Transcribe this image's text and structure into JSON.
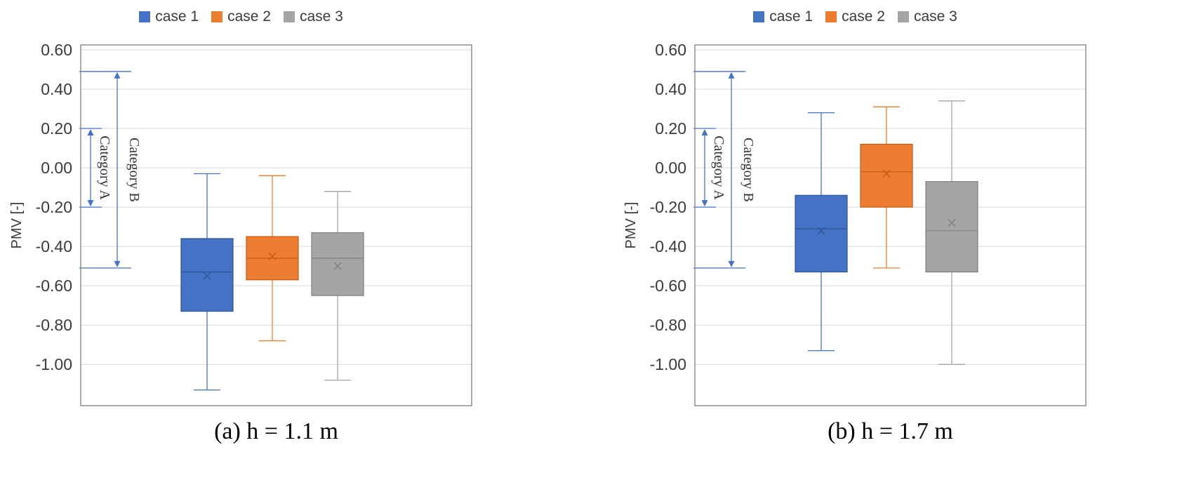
{
  "page": {
    "background": "#ffffff",
    "grid_color": "#d9d9d9",
    "border_color": "#7f7f7f",
    "axis_text_color": "#3b3b3b"
  },
  "chart_data": [
    {
      "type": "box",
      "caption": "(a) h = 1.1 m",
      "ylabel": "PMV [-]",
      "ylim": [
        -1.21,
        0.625
      ],
      "grid": true,
      "legend_position": "top",
      "annotation_color": "#4472c4",
      "yticks": [
        {
          "v": 0.6,
          "label": "0.60"
        },
        {
          "v": 0.4,
          "label": "0.40"
        },
        {
          "v": 0.2,
          "label": "0.20"
        },
        {
          "v": 0.0,
          "label": "0.00"
        },
        {
          "v": -0.2,
          "label": "-0.20"
        },
        {
          "v": -0.4,
          "label": "-0.40"
        },
        {
          "v": -0.6,
          "label": "-0.60"
        },
        {
          "v": -0.8,
          "label": "-0.80"
        },
        {
          "v": -1.0,
          "label": "-1.00"
        }
      ],
      "legend": [
        {
          "label": "case 1",
          "color": "#4472c4"
        },
        {
          "label": "case 2",
          "color": "#ed7d31"
        },
        {
          "label": "case 3",
          "color": "#a5a5a5"
        }
      ],
      "annotations": [
        {
          "label": "Category A",
          "top": 0.2,
          "bottom": -0.2
        },
        {
          "label": "Category B",
          "top": 0.49,
          "bottom": -0.51
        }
      ],
      "series": [
        {
          "name": "case 1",
          "color": "#4472c4",
          "stroke": "#2f5597",
          "whisker_low": -1.13,
          "q1": -0.73,
          "median": -0.53,
          "mean": -0.55,
          "q3": -0.36,
          "whisker_high": -0.03
        },
        {
          "name": "case 2",
          "color": "#ed7d31",
          "stroke": "#c55a11",
          "whisker_low": -0.88,
          "q1": -0.57,
          "median": -0.46,
          "mean": -0.45,
          "q3": -0.35,
          "whisker_high": -0.04
        },
        {
          "name": "case 3",
          "color": "#a5a5a5",
          "stroke": "#7f7f7f",
          "whisker_low": -1.08,
          "q1": -0.65,
          "median": -0.46,
          "mean": -0.5,
          "q3": -0.33,
          "whisker_high": -0.12
        }
      ]
    },
    {
      "type": "box",
      "caption": "(b) h = 1.7 m",
      "ylabel": "PMV [-]",
      "ylim": [
        -1.21,
        0.625
      ],
      "grid": true,
      "legend_position": "top",
      "annotation_color": "#4472c4",
      "yticks": [
        {
          "v": 0.6,
          "label": "0.60"
        },
        {
          "v": 0.4,
          "label": "0.40"
        },
        {
          "v": 0.2,
          "label": "0.20"
        },
        {
          "v": 0.0,
          "label": "0.00"
        },
        {
          "v": -0.2,
          "label": "-0.20"
        },
        {
          "v": -0.4,
          "label": "-0.40"
        },
        {
          "v": -0.6,
          "label": "-0.60"
        },
        {
          "v": -0.8,
          "label": "-0.80"
        },
        {
          "v": -1.0,
          "label": "-1.00"
        }
      ],
      "legend": [
        {
          "label": "case 1",
          "color": "#4472c4"
        },
        {
          "label": "case 2",
          "color": "#ed7d31"
        },
        {
          "label": "case 3",
          "color": "#a5a5a5"
        }
      ],
      "annotations": [
        {
          "label": "Category A",
          "top": 0.2,
          "bottom": -0.2
        },
        {
          "label": "Category B",
          "top": 0.49,
          "bottom": -0.51
        }
      ],
      "series": [
        {
          "name": "case 1",
          "color": "#4472c4",
          "stroke": "#2f5597",
          "whisker_low": -0.93,
          "q1": -0.53,
          "median": -0.31,
          "mean": -0.32,
          "q3": -0.14,
          "whisker_high": 0.28
        },
        {
          "name": "case 2",
          "color": "#ed7d31",
          "stroke": "#c55a11",
          "whisker_low": -0.51,
          "q1": -0.2,
          "median": -0.02,
          "mean": -0.03,
          "q3": 0.12,
          "whisker_high": 0.31
        },
        {
          "name": "case 3",
          "color": "#a5a5a5",
          "stroke": "#7f7f7f",
          "whisker_low": -1.0,
          "q1": -0.53,
          "median": -0.32,
          "mean": -0.28,
          "q3": -0.07,
          "whisker_high": 0.34
        }
      ]
    }
  ]
}
